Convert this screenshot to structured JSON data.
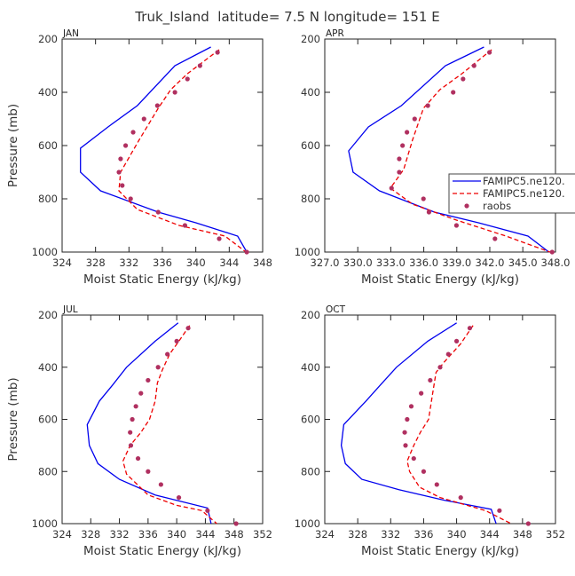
{
  "title": "Truk_Island  latitude= 7.5 N longitude= 151 E",
  "colors": {
    "model1": "#0000ee",
    "model2": "#ee0000",
    "raobs": "#b03060",
    "axis": "#222222"
  },
  "legend": {
    "items": [
      {
        "label": "FAMIPC5.ne120.",
        "style": "solid",
        "color": "#0000ee"
      },
      {
        "label": "FAMIPC5.ne120.",
        "style": "dashed",
        "color": "#ee0000"
      },
      {
        "label": "raobs",
        "style": "dot",
        "color": "#b03060"
      }
    ]
  },
  "chart_data": [
    {
      "type": "line",
      "label": "JAN",
      "xlabel": "Moist Static Energy (kJ/kg)",
      "ylabel": "Pressure (mb)",
      "xlim": [
        324,
        348
      ],
      "ylim": [
        1000,
        200
      ],
      "xticks": [
        324,
        328,
        332,
        336,
        340,
        344,
        348
      ],
      "xtick_labels": [
        "324",
        "328",
        "332",
        "336",
        "340",
        "344",
        "348"
      ],
      "yticks": [
        200,
        400,
        600,
        800,
        1000
      ],
      "series": [
        {
          "style": "solid",
          "points": [
            [
              341.8,
              230
            ],
            [
              337.5,
              300
            ],
            [
              333,
              450
            ],
            [
              329.5,
              530
            ],
            [
              326.2,
              610
            ],
            [
              326.2,
              700
            ],
            [
              328.6,
              770
            ],
            [
              335.5,
              850
            ],
            [
              340,
              890
            ],
            [
              345,
              940
            ],
            [
              346.1,
              1000
            ]
          ]
        },
        {
          "style": "dashed",
          "points": [
            [
              342.8,
              240
            ],
            [
              339,
              330
            ],
            [
              337,
              390
            ],
            [
              335.5,
              460
            ],
            [
              333.2,
              580
            ],
            [
              331,
              700
            ],
            [
              330.8,
              770
            ],
            [
              333,
              840
            ],
            [
              338,
              900
            ],
            [
              343.5,
              940
            ],
            [
              346,
              1000
            ]
          ]
        },
        {
          "style": "dots",
          "points": [
            [
              342.6,
              250
            ],
            [
              340.5,
              300
            ],
            [
              339,
              350
            ],
            [
              337.5,
              400
            ],
            [
              335.4,
              450
            ],
            [
              333.8,
              500
            ],
            [
              332.5,
              550
            ],
            [
              331.6,
              600
            ],
            [
              331,
              650
            ],
            [
              330.8,
              700
            ],
            [
              331.2,
              750
            ],
            [
              332.2,
              800
            ],
            [
              335.5,
              850
            ],
            [
              338.7,
              900
            ],
            [
              342.8,
              950
            ],
            [
              346.1,
              1000
            ]
          ]
        }
      ]
    },
    {
      "type": "line",
      "label": "APR",
      "xlabel": "Moist Static Energy (kJ/kg)",
      "ylabel": "",
      "xlim": [
        327.03,
        348.0
      ],
      "ylim": [
        1000,
        200
      ],
      "xticks": [
        327.03,
        330.03,
        333.03,
        336.03,
        339.03,
        342.03,
        345.03,
        348.0
      ],
      "xtick_labels": [
        "327.0",
        "330.0",
        "333.0",
        "336.0",
        "339.0",
        "342.0",
        "345.0",
        "348.0"
      ],
      "yticks": [
        200,
        400,
        600,
        800,
        1000
      ],
      "series": [
        {
          "style": "solid",
          "points": [
            [
              341.5,
              230
            ],
            [
              338,
              300
            ],
            [
              334,
              450
            ],
            [
              331,
              530
            ],
            [
              329.2,
              620
            ],
            [
              329.6,
              700
            ],
            [
              332,
              770
            ],
            [
              337,
              850
            ],
            [
              341,
              890
            ],
            [
              345.5,
              940
            ],
            [
              347.4,
              1000
            ]
          ]
        },
        {
          "style": "dashed",
          "points": [
            [
              342.2,
              240
            ],
            [
              339.5,
              330
            ],
            [
              337.5,
              390
            ],
            [
              336,
              460
            ],
            [
              335,
              580
            ],
            [
              334.2,
              690
            ],
            [
              333,
              760
            ],
            [
              335,
              820
            ],
            [
              339,
              880
            ],
            [
              343.5,
              940
            ],
            [
              347.5,
              1000
            ]
          ]
        },
        {
          "style": "dots",
          "points": [
            [
              342,
              250
            ],
            [
              340.6,
              300
            ],
            [
              339.6,
              350
            ],
            [
              338.7,
              400
            ],
            [
              336.4,
              450
            ],
            [
              335.2,
              500
            ],
            [
              334.5,
              550
            ],
            [
              334.1,
              600
            ],
            [
              333.8,
              650
            ],
            [
              333.8,
              700
            ],
            [
              333.1,
              760
            ],
            [
              336,
              800
            ],
            [
              336.5,
              850
            ],
            [
              339,
              900
            ],
            [
              342.5,
              950
            ],
            [
              347.7,
              1000
            ]
          ]
        }
      ]
    },
    {
      "type": "line",
      "label": "JUL",
      "xlabel": "Moist Static Energy (kJ/kg)",
      "ylabel": "Pressure (mb)",
      "xlim": [
        324,
        352
      ],
      "ylim": [
        1000,
        200
      ],
      "xticks": [
        324,
        328,
        332,
        336,
        340,
        344,
        348,
        352
      ],
      "xtick_labels": [
        "324",
        "328",
        "332",
        "336",
        "340",
        "344",
        "348",
        "352"
      ],
      "yticks": [
        200,
        400,
        600,
        800,
        1000
      ],
      "series": [
        {
          "style": "solid",
          "points": [
            [
              340.2,
              230
            ],
            [
              337,
              300
            ],
            [
              333,
              400
            ],
            [
              331,
              470
            ],
            [
              329.2,
              530
            ],
            [
              327.5,
              620
            ],
            [
              327.8,
              700
            ],
            [
              329,
              770
            ],
            [
              332,
              830
            ],
            [
              337,
              890
            ],
            [
              344.3,
              940
            ],
            [
              344.8,
              1000
            ]
          ]
        },
        {
          "style": "dashed",
          "points": [
            [
              341.8,
              240
            ],
            [
              340.3,
              300
            ],
            [
              339,
              350
            ],
            [
              338,
              410
            ],
            [
              337.3,
              460
            ],
            [
              337,
              530
            ],
            [
              336.2,
              600
            ],
            [
              335,
              650
            ],
            [
              333.5,
              700
            ],
            [
              332.5,
              760
            ],
            [
              333,
              810
            ],
            [
              336,
              890
            ],
            [
              340,
              930
            ],
            [
              343.5,
              950
            ],
            [
              345.6,
              1000
            ]
          ]
        },
        {
          "style": "dots",
          "points": [
            [
              341.6,
              250
            ],
            [
              340,
              300
            ],
            [
              338.7,
              350
            ],
            [
              337.4,
              400
            ],
            [
              336,
              450
            ],
            [
              335,
              500
            ],
            [
              334.3,
              550
            ],
            [
              333.8,
              600
            ],
            [
              333.5,
              650
            ],
            [
              333.6,
              700
            ],
            [
              334.6,
              750
            ],
            [
              336,
              800
            ],
            [
              337.8,
              850
            ],
            [
              340.3,
              900
            ],
            [
              344.3,
              950
            ],
            [
              348.3,
              1000
            ]
          ]
        }
      ]
    },
    {
      "type": "line",
      "label": "OCT",
      "xlabel": "Moist Static Energy (kJ/kg)",
      "ylabel": "",
      "xlim": [
        324,
        352
      ],
      "ylim": [
        1000,
        200
      ],
      "xticks": [
        324,
        328,
        332,
        336,
        340,
        344,
        348,
        352
      ],
      "xtick_labels": [
        "324",
        "328",
        "332",
        "336",
        "340",
        "344",
        "348",
        "352"
      ],
      "yticks": [
        200,
        400,
        600,
        800,
        1000
      ],
      "series": [
        {
          "style": "solid",
          "points": [
            [
              340,
              230
            ],
            [
              336.5,
              300
            ],
            [
              332.7,
              400
            ],
            [
              330.7,
              470
            ],
            [
              329,
              530
            ],
            [
              326.3,
              620
            ],
            [
              326,
              700
            ],
            [
              326.5,
              770
            ],
            [
              328.5,
              830
            ],
            [
              333,
              870
            ],
            [
              338.5,
              910
            ],
            [
              344.2,
              945
            ],
            [
              344.8,
              1000
            ]
          ]
        },
        {
          "style": "dashed",
          "points": [
            [
              342,
              240
            ],
            [
              340.5,
              310
            ],
            [
              338.5,
              380
            ],
            [
              337.5,
              420
            ],
            [
              337.1,
              500
            ],
            [
              336.6,
              600
            ],
            [
              335.6,
              650
            ],
            [
              334.8,
              700
            ],
            [
              334,
              760
            ],
            [
              334.3,
              800
            ],
            [
              335.5,
              860
            ],
            [
              338,
              900
            ],
            [
              343.5,
              950
            ],
            [
              346.6,
              1000
            ]
          ]
        },
        {
          "style": "dots",
          "points": [
            [
              341.6,
              250
            ],
            [
              340,
              300
            ],
            [
              339,
              350
            ],
            [
              338,
              400
            ],
            [
              336.8,
              450
            ],
            [
              335.7,
              500
            ],
            [
              334.5,
              550
            ],
            [
              334,
              600
            ],
            [
              333.7,
              650
            ],
            [
              333.8,
              700
            ],
            [
              334.8,
              750
            ],
            [
              336,
              800
            ],
            [
              337.6,
              850
            ],
            [
              340.5,
              900
            ],
            [
              345.2,
              950
            ],
            [
              348.7,
              1000
            ]
          ]
        }
      ]
    }
  ]
}
